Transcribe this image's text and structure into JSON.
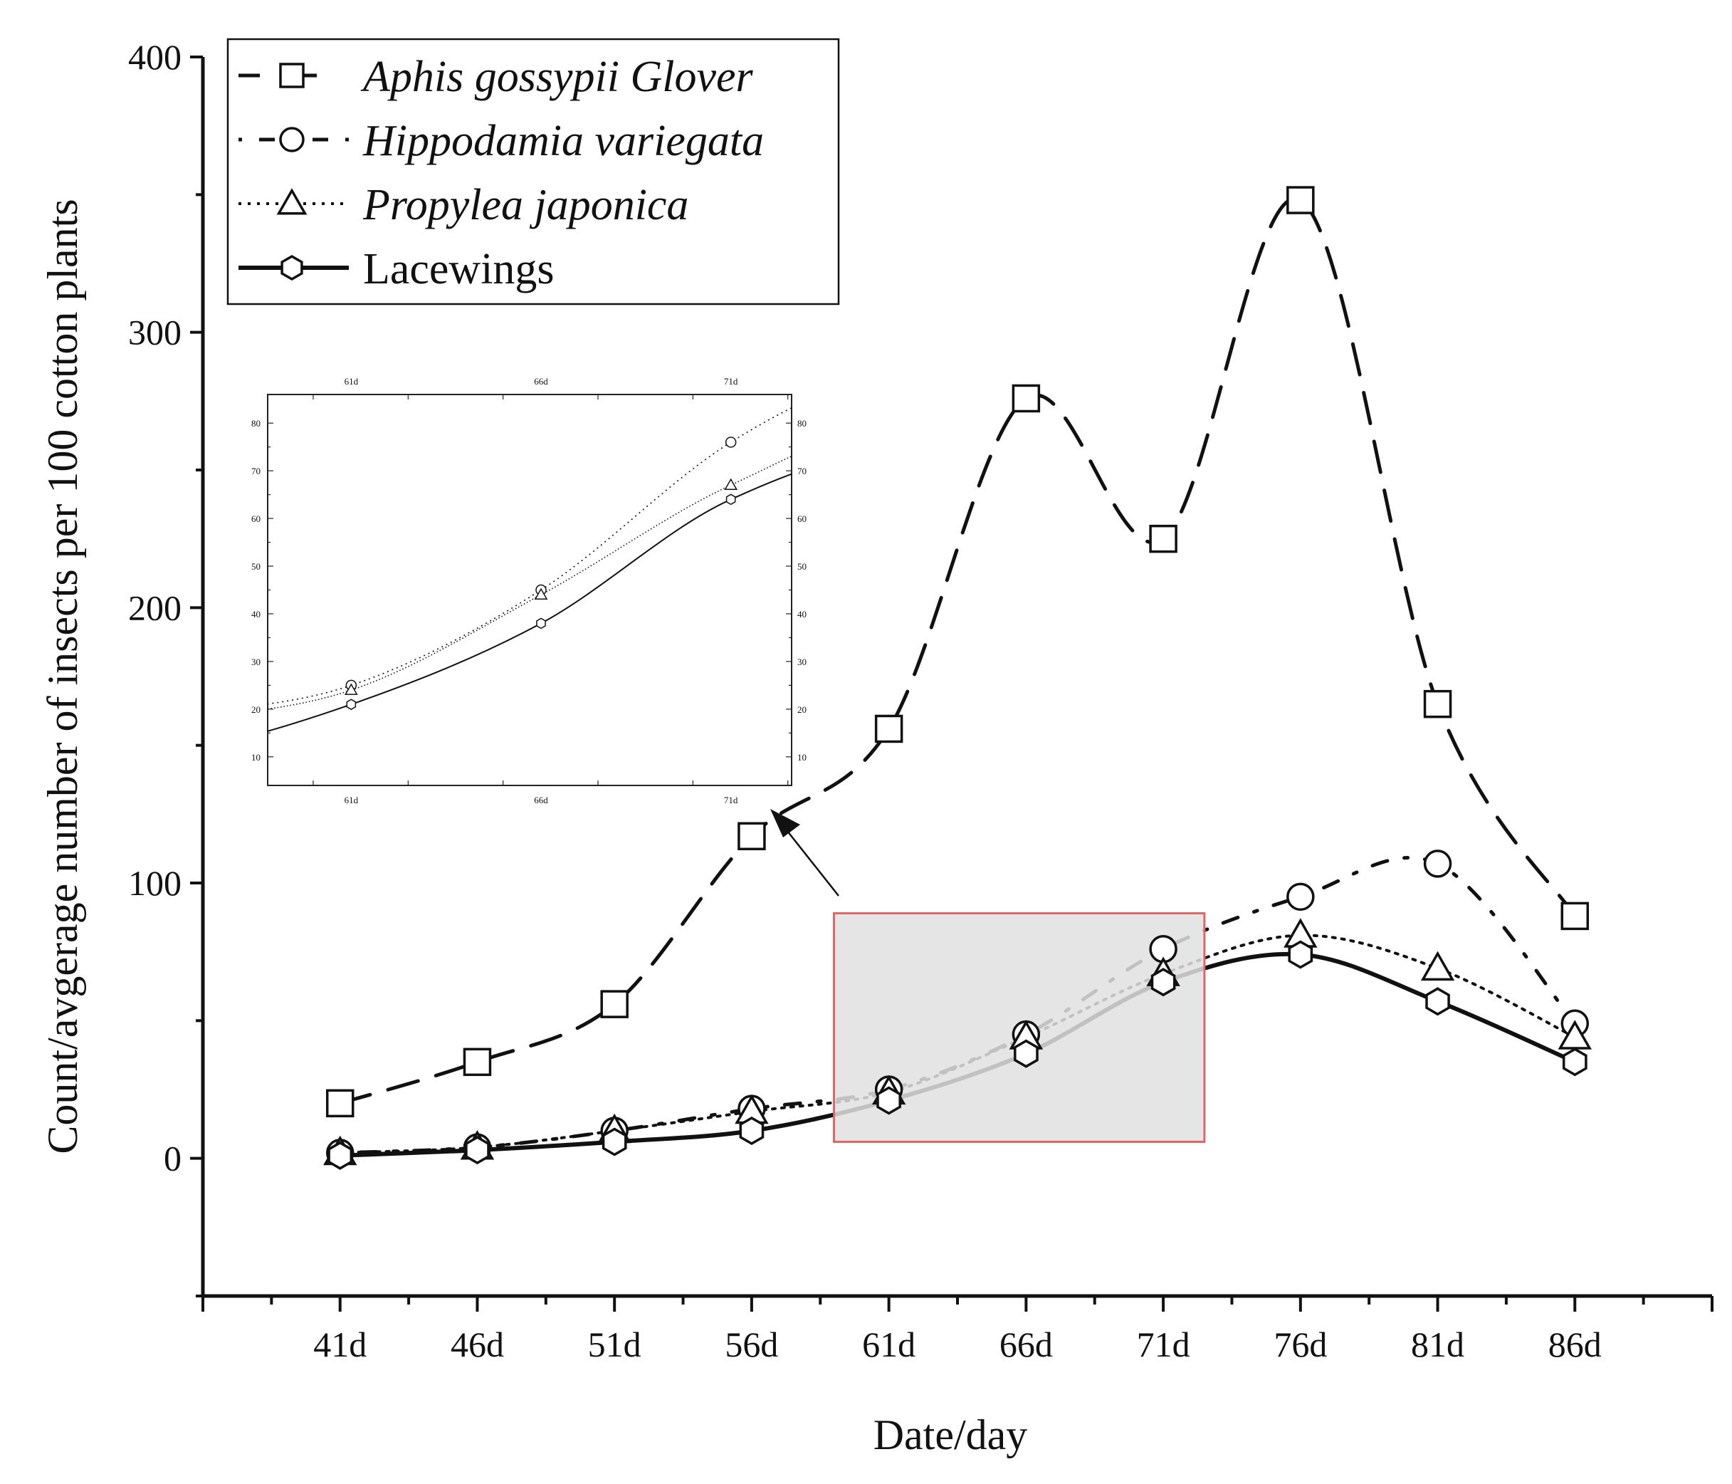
{
  "chart_data": {
    "type": "line",
    "title": "",
    "xlabel": "Date/day",
    "ylabel": "Count/avgerage number of insects per 100 cotton plants",
    "categories": [
      "41d",
      "46d",
      "51d",
      "56d",
      "61d",
      "66d",
      "71d",
      "76d",
      "81d",
      "86d"
    ],
    "x": [
      41,
      46,
      51,
      56,
      61,
      66,
      71,
      76,
      81,
      86
    ],
    "xlim": [
      36,
      91
    ],
    "ylim": [
      -50,
      400
    ],
    "yticks": [
      0,
      100,
      200,
      300,
      400
    ],
    "ytick_labels": [
      "0",
      "100",
      "200",
      "300",
      "400"
    ],
    "grid": false,
    "legend_position": "top-left",
    "series": [
      {
        "name": "Aphis gossypii Glover",
        "marker": "square",
        "line": "dashed",
        "italic": true,
        "values": [
          20,
          35,
          56,
          117,
          156,
          276,
          225,
          348,
          165,
          88
        ]
      },
      {
        "name": "Hippodamia variegata",
        "marker": "circle",
        "line": "dash-dot",
        "italic": true,
        "values": [
          2,
          4,
          10,
          18,
          25,
          45,
          76,
          95,
          107,
          49
        ]
      },
      {
        "name": "Propylea japonica",
        "marker": "triangle",
        "line": "dotted",
        "italic": true,
        "values": [
          2,
          4,
          10,
          17,
          24,
          44,
          67,
          81,
          69,
          44
        ]
      },
      {
        "name": "Lacewings",
        "marker": "hexagon",
        "line": "solid",
        "italic": false,
        "values": [
          1,
          3,
          6,
          10,
          21,
          38,
          64,
          74,
          57,
          35
        ]
      }
    ],
    "highlight_region": {
      "x_range": [
        59,
        72.5
      ],
      "y_range": [
        6,
        89
      ],
      "color": "#e06666",
      "fill": "#e0e0e0"
    },
    "inset": {
      "xticks": [
        "61d",
        "66d",
        "71d"
      ],
      "xlim": [
        58.8,
        72.6
      ],
      "ylim": [
        4,
        86
      ],
      "yticks": [
        10,
        20,
        30,
        40,
        50,
        60,
        70,
        80
      ],
      "ytick_labels": [
        "10",
        "20",
        "30",
        "40",
        "50",
        "60",
        "70",
        "80"
      ]
    }
  }
}
